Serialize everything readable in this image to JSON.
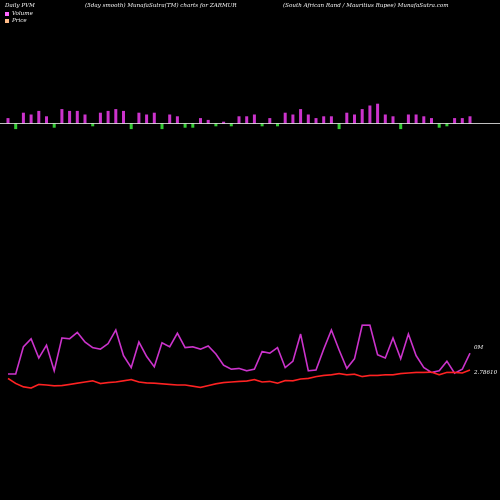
{
  "header": {
    "left": "Daily PVM",
    "middle": "(5day smooth) MunafaSutra(TM) charts for ZARMUR",
    "right": "(South African  Rand / Mauritius Rupee) MunafaSutra.com"
  },
  "legend": [
    {
      "label": "Volume",
      "color": "#ff66ff"
    },
    {
      "label": "Price",
      "color": "#ffbb88"
    }
  ],
  "colors": {
    "background": "#000000",
    "volume_up": "#cc33cc",
    "volume_down": "#33cc33",
    "volume_line": "#cc33cc",
    "price_line": "#ff2222",
    "baseline": "#ffffff"
  },
  "chart_data": {
    "type": "line",
    "labels": {
      "volume_axis": "0M",
      "price_axis": "2.78610"
    },
    "volume_bars": {
      "values": [
        3,
        -4,
        6,
        5,
        7,
        4,
        -3,
        8,
        7,
        7,
        5,
        -2,
        6,
        7,
        8,
        7,
        -4,
        6,
        5,
        6,
        -4,
        5,
        4,
        -3,
        -3,
        3,
        2,
        -2,
        1,
        -2,
        4,
        4,
        5,
        -2,
        3,
        -2,
        6,
        5,
        8,
        5,
        3,
        4,
        4,
        -4,
        6,
        5,
        8,
        10,
        11,
        5,
        4,
        -4,
        5,
        5,
        4,
        3,
        -3,
        -2,
        3,
        3,
        4
      ]
    },
    "volume_line": {
      "values": [
        2.0,
        2.0,
        5.4,
        6.4,
        4.0,
        5.6,
        2.4,
        6.5,
        6.4,
        7.2,
        6.0,
        5.3,
        5.1,
        5.8,
        7.5,
        4.3,
        2.8,
        6.0,
        4.2,
        2.9,
        5.9,
        5.4,
        7.1,
        5.3,
        5.4,
        5.1,
        5.5,
        4.5,
        3.1,
        2.6,
        2.7,
        2.4,
        2.6,
        4.8,
        4.6,
        5.3,
        2.8,
        3.6,
        7.0,
        2.4,
        2.5,
        5.1,
        7.5,
        5.0,
        2.7,
        3.9,
        8.1,
        8.1,
        4.4,
        4.0,
        6.5,
        3.9,
        7.0,
        4.3,
        2.8,
        2.2,
        2.4,
        3.6,
        2.1,
        2.6,
        4.6
      ]
    },
    "price_line": {
      "values": [
        2.8,
        2.38,
        2.1,
        2.0,
        2.3,
        2.25,
        2.18,
        2.2,
        2.3,
        2.4,
        2.5,
        2.6,
        2.37,
        2.45,
        2.5,
        2.6,
        2.7,
        2.5,
        2.42,
        2.4,
        2.35,
        2.3,
        2.25,
        2.25,
        2.15,
        2.05,
        2.2,
        2.35,
        2.45,
        2.5,
        2.55,
        2.58,
        2.7,
        2.5,
        2.55,
        2.4,
        2.62,
        2.6,
        2.75,
        2.8,
        2.95,
        3.05,
        3.1,
        3.2,
        3.1,
        3.15,
        2.95,
        3.05,
        3.05,
        3.1,
        3.1,
        3.2,
        3.25,
        3.3,
        3.3,
        3.32,
        3.1,
        3.3,
        3.3,
        3.25,
        3.5
      ]
    }
  }
}
